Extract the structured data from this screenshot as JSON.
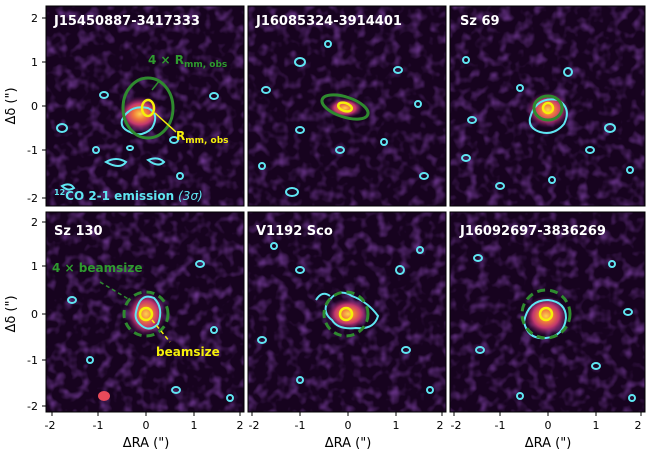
{
  "figure": {
    "panels": [
      {
        "name": "J15450887-3417333",
        "center_label": "small",
        "marker": "ellipse"
      },
      {
        "name": "J16085324-3914401",
        "marker": "ellipse"
      },
      {
        "name": "Sz 69",
        "marker": "ellipse"
      },
      {
        "name": "Sz 130",
        "marker": "circle"
      },
      {
        "name": "V1192 Sco",
        "marker": "circle"
      },
      {
        "name": "J16092697-3836269",
        "marker": "circle"
      }
    ],
    "axes": {
      "xlabel": "ΔRA (\")",
      "ylabel": "Δδ (\")",
      "xticks": [
        "-2",
        "-1",
        "0",
        "1",
        "2"
      ],
      "yticks": [
        "2",
        "1",
        "0",
        "-1",
        "-2"
      ],
      "xrange": [
        -2,
        2
      ],
      "yrange": [
        -2,
        2
      ]
    },
    "annotations": {
      "rmm4_label_pre": "4 × R",
      "rmm4_label_sub": "mm, obs",
      "rmm_label_pre": "R",
      "rmm_label_sub": "mm, obs",
      "co_label_sup": "12",
      "co_label_main": "CO 2-1 emission",
      "co_label_sigma": "(3σ)",
      "beam4_label": "4 × beamsize",
      "beam_label": "beamsize"
    },
    "colors": {
      "background": "#17031f",
      "contour": "#5fe6f2",
      "green_marker": "#2f8a2f",
      "yellow_marker": "#f5f00a",
      "green_text": "#2f9a2f",
      "yellow_text": "#f5f00a",
      "cyan_text": "#5fe6f2"
    }
  }
}
